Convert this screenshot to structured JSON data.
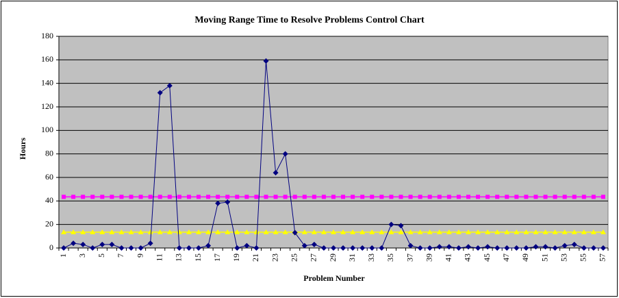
{
  "chart_data": {
    "type": "line",
    "title": "Moving Range Time to Resolve Problems Control Chart",
    "x_label": "Problem Number",
    "y_label": "Hours",
    "categories": [
      1,
      null,
      3,
      null,
      5,
      null,
      7,
      null,
      9,
      null,
      11,
      null,
      13,
      null,
      15,
      null,
      17,
      null,
      19,
      null,
      21,
      null,
      23,
      null,
      25,
      null,
      27,
      null,
      29,
      null,
      31,
      null,
      33,
      null,
      35,
      null,
      37,
      null,
      39,
      null,
      41,
      null,
      43,
      null,
      45,
      null,
      47,
      null,
      49,
      null,
      51,
      null,
      53,
      null,
      55,
      null,
      57
    ],
    "series": [
      {
        "color": "#000080",
        "marker": "diamond",
        "values": [
          0,
          4,
          3,
          0,
          3,
          3,
          0,
          0,
          0,
          4,
          132,
          138,
          0,
          0,
          0,
          2,
          38,
          39,
          0,
          2,
          0,
          159,
          64,
          80,
          13,
          2,
          3,
          0,
          0,
          0,
          0,
          0,
          0,
          0,
          20,
          19,
          2,
          0,
          0,
          1,
          1,
          0,
          1,
          0,
          1,
          0,
          0,
          0,
          0,
          1,
          1,
          0,
          2,
          3,
          0,
          0,
          0
        ]
      },
      {
        "color": "#ff00ff",
        "marker": "square",
        "values": [
          43.5,
          43.5,
          43.5,
          43.5,
          43.5,
          43.5,
          43.5,
          43.5,
          43.5,
          43.5,
          43.5,
          43.5,
          43.5,
          43.5,
          43.5,
          43.5,
          43.5,
          43.5,
          43.5,
          43.5,
          43.5,
          43.5,
          43.5,
          43.5,
          43.5,
          43.5,
          43.5,
          43.5,
          43.5,
          43.5,
          43.5,
          43.5,
          43.5,
          43.5,
          43.5,
          43.5,
          43.5,
          43.5,
          43.5,
          43.5,
          43.5,
          43.5,
          43.5,
          43.5,
          43.5,
          43.5,
          43.5,
          43.5,
          43.5,
          43.5,
          43.5,
          43.5,
          43.5,
          43.5,
          43.5,
          43.5,
          43.5
        ]
      },
      {
        "color": "#ffff00",
        "marker": "triangle",
        "values": [
          13.5,
          13.5,
          13.5,
          13.5,
          13.5,
          13.5,
          13.5,
          13.5,
          13.5,
          13.5,
          13.5,
          13.5,
          13.5,
          13.5,
          13.5,
          13.5,
          13.5,
          13.5,
          13.5,
          13.5,
          13.5,
          13.5,
          13.5,
          13.5,
          13.5,
          13.5,
          13.5,
          13.5,
          13.5,
          13.5,
          13.5,
          13.5,
          13.5,
          13.5,
          13.5,
          13.5,
          13.5,
          13.5,
          13.5,
          13.5,
          13.5,
          13.5,
          13.5,
          13.5,
          13.5,
          13.5,
          13.5,
          13.5,
          13.5,
          13.5,
          13.5,
          13.5,
          13.5,
          13.5,
          13.5,
          13.5,
          13.5
        ]
      }
    ],
    "ylim": [
      0,
      180
    ],
    "yticks": [
      0,
      20,
      40,
      60,
      80,
      100,
      120,
      140,
      160,
      180
    ],
    "grid": true,
    "plot_background": "#c0c0c0"
  }
}
